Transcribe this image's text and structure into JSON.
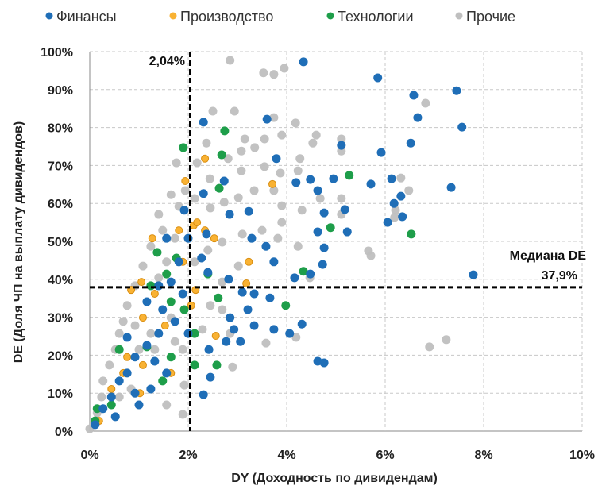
{
  "chart_data": {
    "type": "scatter",
    "xlabel": "DY (Доходность по дивидендам)",
    "ylabel": "DE (Доля ЧП на выплату дивидендов)",
    "xlim": [
      0,
      10
    ],
    "ylim": [
      0,
      100
    ],
    "x_ticks": [
      "0%",
      "2%",
      "4%",
      "6%",
      "8%",
      "10%"
    ],
    "y_ticks": [
      "0%",
      "10%",
      "20%",
      "30%",
      "40%",
      "50%",
      "60%",
      "70%",
      "80%",
      "90%",
      "100%"
    ],
    "grid": true,
    "legend_position": "top",
    "reference_lines": {
      "vertical": {
        "x": 2.04,
        "label": "2,04%"
      },
      "horizontal": {
        "y": 37.9,
        "label_line1": "Медиана DE",
        "label_line2": "37,9%"
      }
    },
    "series": [
      {
        "name": "Прочие",
        "color": "#BFBFBF",
        "points": [
          [
            2.85,
            97.7
          ],
          [
            3.95,
            95.6
          ],
          [
            3.74,
            94.0
          ],
          [
            3.53,
            94.4
          ],
          [
            6.82,
            86.4
          ],
          [
            2.5,
            84.3
          ],
          [
            3.74,
            82.6
          ],
          [
            2.94,
            84.3
          ],
          [
            4.18,
            81.2
          ],
          [
            4.53,
            75.9
          ],
          [
            4.6,
            78.0
          ],
          [
            5.11,
            77.0
          ],
          [
            5.11,
            73.8
          ],
          [
            3.9,
            78.0
          ],
          [
            3.55,
            77.0
          ],
          [
            3.15,
            77.0
          ],
          [
            3.35,
            74.7
          ],
          [
            3.08,
            73.8
          ],
          [
            2.81,
            71.8
          ],
          [
            2.37,
            75.9
          ],
          [
            2.18,
            70.7
          ],
          [
            2.44,
            66.5
          ],
          [
            3.08,
            68.6
          ],
          [
            3.55,
            69.7
          ],
          [
            3.87,
            68.0
          ],
          [
            4.27,
            71.8
          ],
          [
            4.23,
            68.6
          ],
          [
            3.74,
            63.4
          ],
          [
            3.34,
            63.4
          ],
          [
            3.02,
            61.5
          ],
          [
            2.73,
            60.3
          ],
          [
            2.45,
            58.8
          ],
          [
            2.13,
            61.3
          ],
          [
            1.94,
            63.4
          ],
          [
            1.81,
            59.2
          ],
          [
            1.65,
            62.3
          ],
          [
            6.32,
            66.7
          ],
          [
            6.48,
            63.4
          ],
          [
            6.21,
            58.2
          ],
          [
            6.19,
            56.3
          ],
          [
            5.66,
            47.5
          ],
          [
            5.71,
            46.2
          ],
          [
            6.9,
            22.2
          ],
          [
            7.24,
            24.1
          ],
          [
            5.11,
            61.3
          ],
          [
            5.11,
            57.1
          ],
          [
            4.68,
            61.3
          ],
          [
            4.31,
            58.2
          ],
          [
            3.9,
            59.4
          ],
          [
            3.9,
            55.0
          ],
          [
            3.5,
            52.9
          ],
          [
            3.1,
            51.9
          ],
          [
            2.69,
            49.8
          ],
          [
            2.4,
            47.7
          ],
          [
            2.13,
            44.6
          ],
          [
            3.82,
            50.8
          ],
          [
            4.23,
            48.7
          ],
          [
            4.47,
            40.4
          ],
          [
            3.02,
            43.5
          ],
          [
            2.69,
            39.3
          ],
          [
            2.45,
            33.1
          ],
          [
            2.69,
            32.0
          ],
          [
            2.29,
            26.8
          ],
          [
            2.85,
            25.7
          ],
          [
            3.58,
            23.2
          ],
          [
            4.19,
            24.7
          ],
          [
            2.9,
            16.9
          ],
          [
            1.89,
            21.5
          ],
          [
            1.92,
            12.1
          ],
          [
            1.89,
            4.4
          ],
          [
            1.4,
            57.1
          ],
          [
            1.48,
            52.9
          ],
          [
            1.24,
            48.7
          ],
          [
            1.08,
            43.5
          ],
          [
            0.92,
            38.3
          ],
          [
            0.76,
            33.1
          ],
          [
            0.68,
            28.9
          ],
          [
            0.6,
            25.7
          ],
          [
            0.52,
            21.5
          ],
          [
            0.4,
            17.4
          ],
          [
            0.27,
            13.2
          ],
          [
            0.24,
            9.0
          ],
          [
            0.15,
            4.8
          ],
          [
            0.0,
            0.6
          ],
          [
            1.0,
            21.5
          ],
          [
            1.24,
            25.7
          ],
          [
            0.92,
            27.8
          ],
          [
            1.32,
            21.5
          ],
          [
            1.65,
            29.9
          ],
          [
            1.73,
            23.6
          ],
          [
            1.56,
            6.9
          ],
          [
            0.84,
            11.1
          ],
          [
            0.6,
            9.0
          ],
          [
            1.4,
            40.4
          ],
          [
            1.56,
            44.6
          ],
          [
            1.73,
            50.8
          ],
          [
            1.76,
            70.7
          ]
        ]
      },
      {
        "name": "Производство",
        "color": "#F9B233",
        "points": [
          [
            2.34,
            71.8
          ],
          [
            2.11,
            54.2
          ],
          [
            2.18,
            55.0
          ],
          [
            3.71,
            65.1
          ],
          [
            3.23,
            44.6
          ],
          [
            2.53,
            50.8
          ],
          [
            2.34,
            52.9
          ],
          [
            2.56,
            25.1
          ],
          [
            3.18,
            38.9
          ],
          [
            2.15,
            37.2
          ],
          [
            2.06,
            33.1
          ],
          [
            1.27,
            50.8
          ],
          [
            1.05,
            39.3
          ],
          [
            0.84,
            37.2
          ],
          [
            1.08,
            29.9
          ],
          [
            0.76,
            19.5
          ],
          [
            0.68,
            15.3
          ],
          [
            0.44,
            11.1
          ],
          [
            0.19,
            2.7
          ],
          [
            1.4,
            25.7
          ],
          [
            1.65,
            15.3
          ],
          [
            1.89,
            44.6
          ],
          [
            1.81,
            52.9
          ],
          [
            1.08,
            17.4
          ],
          [
            1.53,
            27.8
          ],
          [
            1.32,
            36.2
          ],
          [
            1.02,
            10.0
          ],
          [
            1.94,
            65.9
          ]
        ]
      },
      {
        "name": "Технологии",
        "color": "#1E9E4A",
        "points": [
          [
            1.9,
            74.7
          ],
          [
            2.74,
            79.1
          ],
          [
            2.68,
            72.8
          ],
          [
            2.63,
            64.0
          ],
          [
            5.27,
            67.4
          ],
          [
            4.89,
            53.6
          ],
          [
            6.53,
            51.9
          ],
          [
            4.34,
            42.1
          ],
          [
            3.98,
            33.1
          ],
          [
            2.61,
            35.1
          ],
          [
            2.4,
            41.4
          ],
          [
            2.13,
            25.7
          ],
          [
            2.13,
            17.4
          ],
          [
            2.58,
            17.4
          ],
          [
            1.76,
            45.6
          ],
          [
            1.65,
            34.1
          ],
          [
            1.37,
            47.1
          ],
          [
            1.24,
            38.3
          ],
          [
            1.16,
            22.2
          ],
          [
            1.65,
            19.5
          ],
          [
            1.48,
            13.2
          ],
          [
            0.6,
            21.5
          ],
          [
            0.44,
            6.9
          ],
          [
            0.15,
            5.9
          ],
          [
            0.11,
            2.7
          ],
          [
            1.56,
            41.4
          ],
          [
            1.92,
            32.0
          ]
        ]
      },
      {
        "name": "Финансы",
        "color": "#1F6EB7",
        "points": [
          [
            4.34,
            97.3
          ],
          [
            5.85,
            93.1
          ],
          [
            6.58,
            88.5
          ],
          [
            7.45,
            89.7
          ],
          [
            7.56,
            80.1
          ],
          [
            6.66,
            82.6
          ],
          [
            5.92,
            73.4
          ],
          [
            6.52,
            75.9
          ],
          [
            7.34,
            64.2
          ],
          [
            5.11,
            75.3
          ],
          [
            3.6,
            82.2
          ],
          [
            2.31,
            81.4
          ],
          [
            3.79,
            71.8
          ],
          [
            7.79,
            41.2
          ],
          [
            6.13,
            66.5
          ],
          [
            6.05,
            55.0
          ],
          [
            6.18,
            60.0
          ],
          [
            6.32,
            61.9
          ],
          [
            6.35,
            56.5
          ],
          [
            5.71,
            65.1
          ],
          [
            5.23,
            52.5
          ],
          [
            5.18,
            58.4
          ],
          [
            4.63,
            63.4
          ],
          [
            4.95,
            66.5
          ],
          [
            4.19,
            65.5
          ],
          [
            4.48,
            66.3
          ],
          [
            4.76,
            57.5
          ],
          [
            4.63,
            52.5
          ],
          [
            4.76,
            48.3
          ],
          [
            4.73,
            43.9
          ],
          [
            4.48,
            41.4
          ],
          [
            4.16,
            40.4
          ],
          [
            3.74,
            44.6
          ],
          [
            3.58,
            48.7
          ],
          [
            3.29,
            50.8
          ],
          [
            3.23,
            57.9
          ],
          [
            2.84,
            57.1
          ],
          [
            2.73,
            65.9
          ],
          [
            2.31,
            62.6
          ],
          [
            2.37,
            51.9
          ],
          [
            2.27,
            45.6
          ],
          [
            2.4,
            41.8
          ],
          [
            2.82,
            40.0
          ],
          [
            3.1,
            36.6
          ],
          [
            3.34,
            36.2
          ],
          [
            3.21,
            32.0
          ],
          [
            2.85,
            29.9
          ],
          [
            2.93,
            26.8
          ],
          [
            3.34,
            27.8
          ],
          [
            3.74,
            26.8
          ],
          [
            4.31,
            28.2
          ],
          [
            4.06,
            25.7
          ],
          [
            3.66,
            35.1
          ],
          [
            3.06,
            23.6
          ],
          [
            2.77,
            23.6
          ],
          [
            2.42,
            21.5
          ],
          [
            2.45,
            14.2
          ],
          [
            2.31,
            9.6
          ],
          [
            4.63,
            18.4
          ],
          [
            4.76,
            18.0
          ],
          [
            2.0,
            25.7
          ],
          [
            1.73,
            28.9
          ],
          [
            1.4,
            25.7
          ],
          [
            1.16,
            22.6
          ],
          [
            0.92,
            19.5
          ],
          [
            0.76,
            15.3
          ],
          [
            0.6,
            13.2
          ],
          [
            0.44,
            9.0
          ],
          [
            0.27,
            5.9
          ],
          [
            0.11,
            1.7
          ],
          [
            1.89,
            36.2
          ],
          [
            1.65,
            39.3
          ],
          [
            1.4,
            38.3
          ],
          [
            1.16,
            34.1
          ],
          [
            1.92,
            58.2
          ],
          [
            2.0,
            50.8
          ],
          [
            1.81,
            44.6
          ],
          [
            1.56,
            50.8
          ],
          [
            1.48,
            32.0
          ],
          [
            1.56,
            15.3
          ],
          [
            1.24,
            11.1
          ],
          [
            1.0,
            6.9
          ],
          [
            0.52,
            3.8
          ],
          [
            0.92,
            10.0
          ],
          [
            1.32,
            18.4
          ],
          [
            0.76,
            24.7
          ]
        ]
      }
    ],
    "legend_order": [
      "Финансы",
      "Производство",
      "Технологии",
      "Прочие"
    ]
  }
}
